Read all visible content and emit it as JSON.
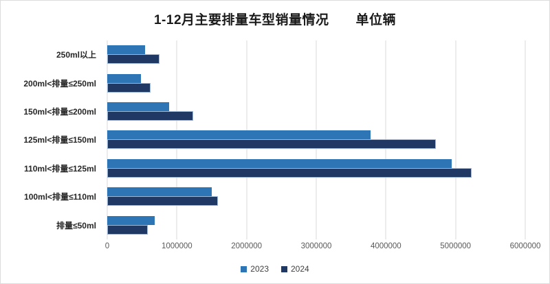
{
  "page": {
    "background": "#ffffff",
    "border_color": "#dcdcdc"
  },
  "chart_data": {
    "type": "bar",
    "orientation": "horizontal",
    "title": "1-12月主要排量车型销量情况　　单位辆",
    "categories_top_to_bottom": [
      "250ml以上",
      "200ml<排量≤250ml",
      "150ml<排量≤200ml",
      "125ml<排量≤150ml",
      "110ml<排量≤125ml",
      "100ml<排量≤110ml",
      "排量≤50ml"
    ],
    "series": [
      {
        "name": "2023",
        "color": "#2e75b6",
        "values": [
          540000,
          480000,
          890000,
          3780000,
          4940000,
          1500000,
          680000
        ]
      },
      {
        "name": "2024",
        "color": "#203864",
        "values": [
          750000,
          620000,
          1230000,
          4720000,
          5230000,
          1590000,
          580000
        ]
      }
    ],
    "xlim": [
      0,
      6000000
    ],
    "x_tick_labels": [
      "0",
      "1000000",
      "2000000",
      "3000000",
      "4000000",
      "5000000",
      "6000000"
    ],
    "grid": "vertical-only",
    "gridline_color": "#d9d9d9",
    "axis_label_color": "#595959",
    "category_label_color": "#262626",
    "legend_position": "bottom-center",
    "legend": [
      {
        "label": "2023",
        "color": "#2e75b6"
      },
      {
        "label": "2024",
        "color": "#203864"
      }
    ]
  }
}
